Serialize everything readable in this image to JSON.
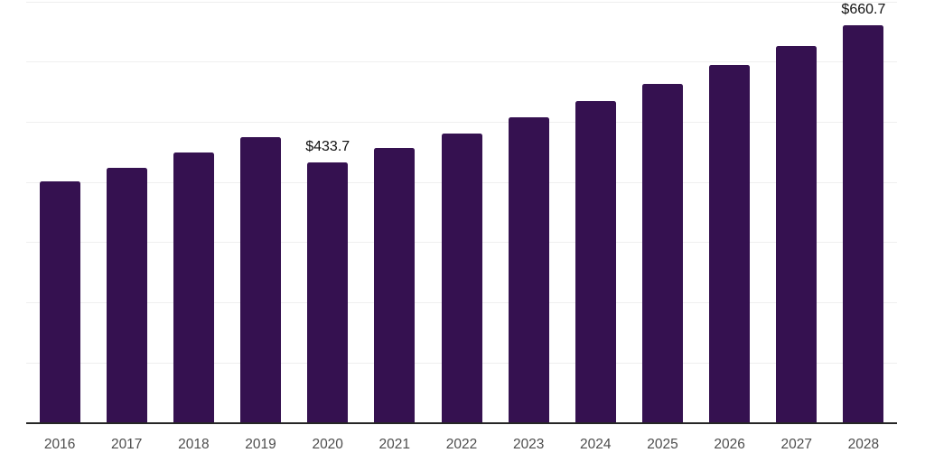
{
  "chart_data": {
    "type": "bar",
    "categories": [
      "2016",
      "2017",
      "2018",
      "2019",
      "2020",
      "2021",
      "2022",
      "2023",
      "2024",
      "2025",
      "2026",
      "2027",
      "2028"
    ],
    "values": [
      402.0,
      424.9,
      450.1,
      475.0,
      433.7,
      457.2,
      481.9,
      508.0,
      535.4,
      564.4,
      594.9,
      627.1,
      660.7
    ],
    "data_labels": [
      {
        "category": "2020",
        "text": "$433.7"
      },
      {
        "category": "2028",
        "text": "$660.7"
      }
    ],
    "title": "",
    "xlabel": "",
    "ylabel": "",
    "ylim": [
      0,
      700
    ],
    "gridline_step": 100,
    "grid": "horizontal",
    "legend": "none",
    "y_axis_labels_visible": false,
    "bar_color": "#351150",
    "axis_line_color": "#262626",
    "gridline_color": "#efefef",
    "tick_label_color": "#4d4d4d",
    "data_label_color": "#111111",
    "background_color": "#ffffff"
  }
}
